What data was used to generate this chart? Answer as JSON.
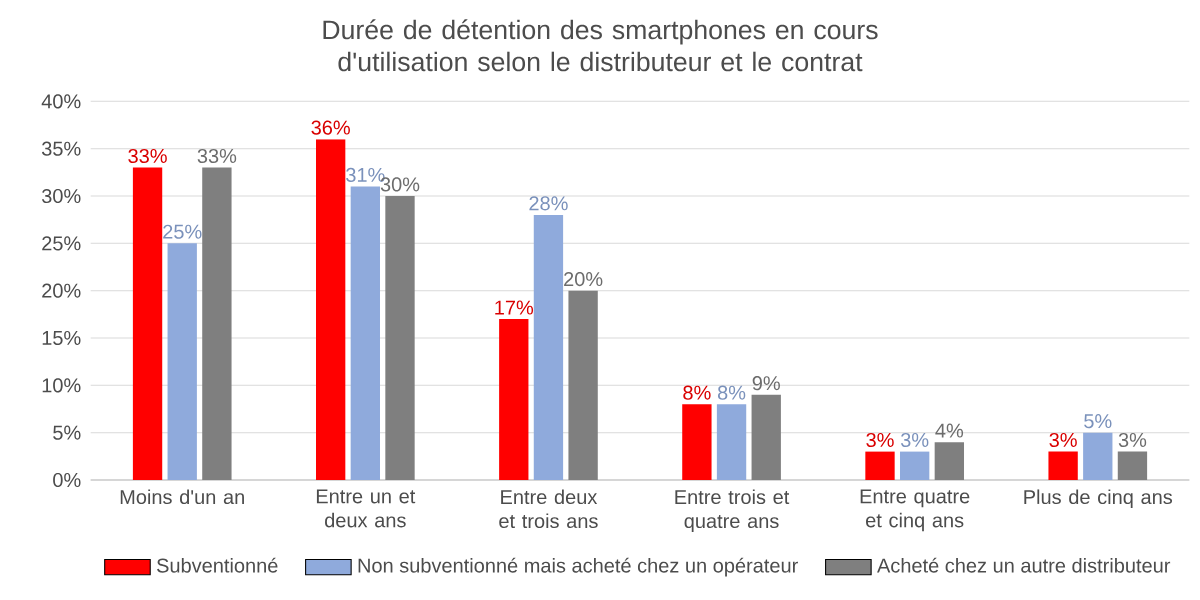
{
  "chart_data": {
    "type": "bar",
    "title": "Durée de détention des smartphones en cours d'utilisation selon le distributeur et le contrat",
    "categories": [
      "Moins d'un an",
      "Entre un et deux ans",
      "Entre deux et trois ans",
      "Entre trois et quatre ans",
      "Entre quatre et cinq ans",
      "Plus de cinq ans"
    ],
    "series": [
      {
        "name": "Subventionné",
        "color": "#ff0000",
        "values": [
          33,
          36,
          17,
          8,
          3,
          3
        ],
        "value_labels": [
          "33%",
          "36%",
          "17%",
          "8%",
          "3%",
          "3%"
        ]
      },
      {
        "name": "Non subventionné mais acheté chez un opérateur",
        "color": "#8faadc",
        "values": [
          25,
          31,
          28,
          8,
          3,
          5
        ],
        "value_labels": [
          "25%",
          "31%",
          "28%",
          "8%",
          "3%",
          "5%"
        ]
      },
      {
        "name": "Acheté chez un autre distributeur",
        "color": "#7f7f7f",
        "values": [
          33,
          30,
          20,
          9,
          4,
          3
        ],
        "value_labels": [
          "33%",
          "30%",
          "20%",
          "9%",
          "4%",
          "3%"
        ]
      }
    ],
    "ylim": [
      0,
      40
    ],
    "yticks": [
      {
        "value": 0,
        "label": "0%"
      },
      {
        "value": 5,
        "label": "5%"
      },
      {
        "value": 10,
        "label": "10%"
      },
      {
        "value": 15,
        "label": "15%"
      },
      {
        "value": 20,
        "label": "20%"
      },
      {
        "value": 25,
        "label": "25%"
      },
      {
        "value": 30,
        "label": "30%"
      },
      {
        "value": 35,
        "label": "35%"
      },
      {
        "value": 40,
        "label": "40%"
      }
    ],
    "grid": "y",
    "legend": "bottom"
  }
}
